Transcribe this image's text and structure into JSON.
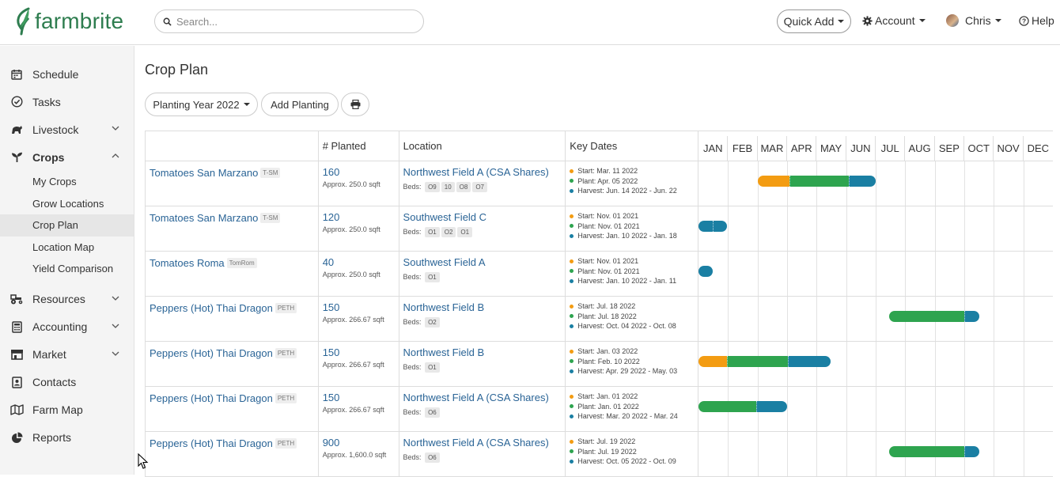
{
  "header": {
    "logo_text": "farmbrite",
    "search_placeholder": "Search...",
    "quick_add": "Quick Add",
    "account": "Account",
    "user": "Chris",
    "help": "Help"
  },
  "sidebar": {
    "items": [
      {
        "label": "Schedule",
        "icon": "calendar-icon",
        "chevron": false
      },
      {
        "label": "Tasks",
        "icon": "check-circle-icon",
        "chevron": false
      },
      {
        "label": "Livestock",
        "icon": "livestock-icon",
        "chevron": true
      },
      {
        "label": "Crops",
        "icon": "sprout-icon",
        "chevron": true,
        "active": true
      },
      {
        "label": "Resources",
        "icon": "tractor-icon",
        "chevron": true
      },
      {
        "label": "Accounting",
        "icon": "calculator-icon",
        "chevron": true
      },
      {
        "label": "Market",
        "icon": "store-icon",
        "chevron": true
      },
      {
        "label": "Contacts",
        "icon": "contacts-icon",
        "chevron": false
      },
      {
        "label": "Farm Map",
        "icon": "map-icon",
        "chevron": false
      },
      {
        "label": "Reports",
        "icon": "pie-chart-icon",
        "chevron": false
      }
    ],
    "crop_subitems": [
      "My Crops",
      "Grow Locations",
      "Crop Plan",
      "Location Map",
      "Yield Comparison"
    ]
  },
  "page": {
    "title": "Crop Plan",
    "planting_year": "Planting Year 2022",
    "add_planting": "Add Planting"
  },
  "table": {
    "headers": {
      "crop": "",
      "planted": "# Planted",
      "location": "Location",
      "key_dates": "Key Dates"
    },
    "months": [
      "JAN",
      "FEB",
      "MAR",
      "APR",
      "MAY",
      "JUN",
      "JUL",
      "AUG",
      "SEP",
      "OCT",
      "NOV",
      "DEC"
    ],
    "beds_label": "Beds:",
    "rows": [
      {
        "crop": "Tomatoes San Marzano",
        "tag": "T-SM",
        "planted": "160",
        "area": "Approx. 250.0 sqft",
        "location": "Northwest Field A (CSA Shares)",
        "beds": [
          "O9",
          "10",
          "O8",
          "O7"
        ],
        "start": "Start: Mar. 11 2022",
        "plant": "Plant: Apr. 05 2022",
        "harvest": "Harvest: Jun. 14 2022 - Jun. 22",
        "bar": {
          "start_month": 2.0,
          "segments": [
            {
              "color": "#f39c12",
              "months": 1.08
            },
            {
              "color": "#2ea44f",
              "months": 2.0
            },
            {
              "color": "#1a7fa3",
              "months": 0.92
            }
          ]
        }
      },
      {
        "crop": "Tomatoes San Marzano",
        "tag": "T-SM",
        "planted": "120",
        "area": "Approx. 250.0 sqft",
        "location": "Southwest Field C",
        "beds": [
          "O1",
          "O2",
          "O1"
        ],
        "start": "Start: Nov. 01 2021",
        "plant": "Plant: Nov. 01 2021",
        "harvest": "Harvest: Jan. 10 2022 - Jan. 18",
        "bar": {
          "start_month": 0.0,
          "segments": [
            {
              "color": "#1a7fa3",
              "months": 0.48
            },
            {
              "color": "#1a7fa3",
              "months": 0.48
            }
          ]
        }
      },
      {
        "crop": "Tomatoes Roma",
        "tag": "TomRom",
        "planted": "40",
        "area": "Approx. 250.0 sqft",
        "location": "Southwest Field A",
        "beds": [
          "O1"
        ],
        "start": "Start: Nov. 01 2021",
        "plant": "Plant: Nov. 01 2021",
        "harvest": "Harvest: Jan. 10 2022 - Jan. 11",
        "bar": {
          "start_month": 0.0,
          "segments": [
            {
              "color": "#1a7fa3",
              "months": 0.48
            }
          ]
        }
      },
      {
        "crop": "Peppers (Hot) Thai Dragon",
        "tag": "PETH",
        "planted": "150",
        "area": "Approx. 266.67 sqft",
        "location": "Northwest Field B",
        "beds": [
          "O2"
        ],
        "start": "Start: Jul. 18 2022",
        "plant": "Plant: Jul. 18 2022",
        "harvest": "Harvest: Oct. 04 2022 - Oct. 08",
        "bar": {
          "start_month": 6.45,
          "segments": [
            {
              "color": "#2ea44f",
              "months": 2.55
            },
            {
              "color": "#1a7fa3",
              "months": 0.5
            }
          ]
        }
      },
      {
        "crop": "Peppers (Hot) Thai Dragon",
        "tag": "PETH",
        "planted": "150",
        "area": "Approx. 266.67 sqft",
        "location": "Northwest Field B",
        "beds": [
          "O1"
        ],
        "start": "Start: Jan. 03 2022",
        "plant": "Plant: Feb. 10 2022",
        "harvest": "Harvest: Apr. 29 2022 - May. 03",
        "bar": {
          "start_month": 0.0,
          "segments": [
            {
              "color": "#f39c12",
              "months": 0.97
            },
            {
              "color": "#2ea44f",
              "months": 2.05
            },
            {
              "color": "#1a7fa3",
              "months": 1.45
            }
          ]
        }
      },
      {
        "crop": "Peppers (Hot) Thai Dragon",
        "tag": "PETH",
        "planted": "150",
        "area": "Approx. 266.67 sqft",
        "location": "Northwest Field A (CSA Shares)",
        "beds": [
          "O6"
        ],
        "start": "Start: Jan. 01 2022",
        "plant": "Plant: Jan. 01 2022",
        "harvest": "Harvest: Mar. 20 2022 - Mar. 24",
        "bar": {
          "start_month": 0.0,
          "segments": [
            {
              "color": "#2ea44f",
              "months": 1.95
            },
            {
              "color": "#1a7fa3",
              "months": 1.05
            }
          ]
        }
      },
      {
        "crop": "Peppers (Hot) Thai Dragon",
        "tag": "PETH",
        "planted": "900",
        "area": "Approx. 1,600.0 sqft",
        "location": "Northwest Field A (CSA Shares)",
        "beds": [
          "O6"
        ],
        "start": "Start: Jul. 19 2022",
        "plant": "Plant: Jul. 19 2022",
        "harvest": "Harvest: Oct. 05 2022 - Oct. 09",
        "bar": {
          "start_month": 6.45,
          "segments": [
            {
              "color": "#2ea44f",
              "months": 2.55
            },
            {
              "color": "#1a7fa3",
              "months": 0.5
            }
          ]
        }
      }
    ]
  },
  "colors": {
    "start": "#f39c12",
    "plant": "#2ea44f",
    "harvest": "#1a7fa3",
    "brand": "#2e7d4f",
    "link": "#2a6496"
  }
}
